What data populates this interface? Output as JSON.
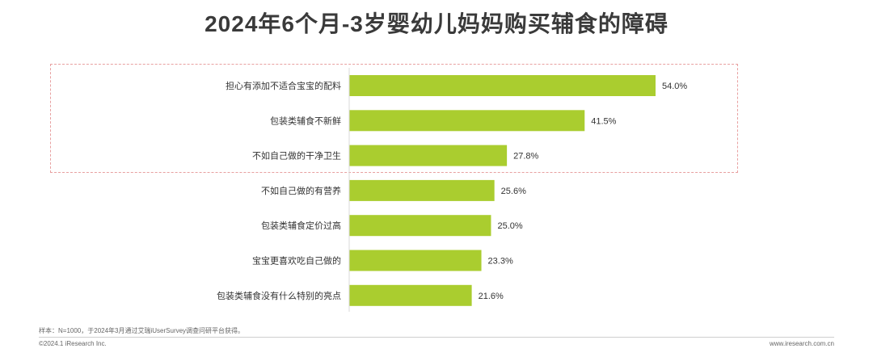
{
  "title": "2024年6个月-3岁婴幼儿妈妈购买辅食的障碍",
  "chart_data": {
    "type": "bar",
    "orientation": "horizontal",
    "categories": [
      "担心有添加不适合宝宝的配料",
      "包装类辅食不新鲜",
      "不如自己做的干净卫生",
      "不如自己做的有营养",
      "包装类辅食定价过高",
      "宝宝更喜欢吃自己做的",
      "包装类辅食没有什么特别的亮点"
    ],
    "values": [
      54.0,
      41.5,
      27.8,
      25.6,
      25.0,
      23.3,
      21.6
    ],
    "value_labels": [
      "54.0%",
      "41.5%",
      "27.8%",
      "25.6%",
      "25.0%",
      "23.3%",
      "21.6%"
    ],
    "unit": "%",
    "bar_color": "#aacd2f",
    "highlight_color": "#e8a0a0",
    "highlighted_top_n": 3,
    "xlim": [
      0,
      54.0
    ],
    "grid": false,
    "legend": "none"
  },
  "footer": {
    "note": "样本：N=1000，于2024年3月通过艾瑞iUserSurvey调查问研平台获得。",
    "copyright": "©2024.1 iResearch Inc.",
    "website": "www.iresearch.com.cn"
  }
}
